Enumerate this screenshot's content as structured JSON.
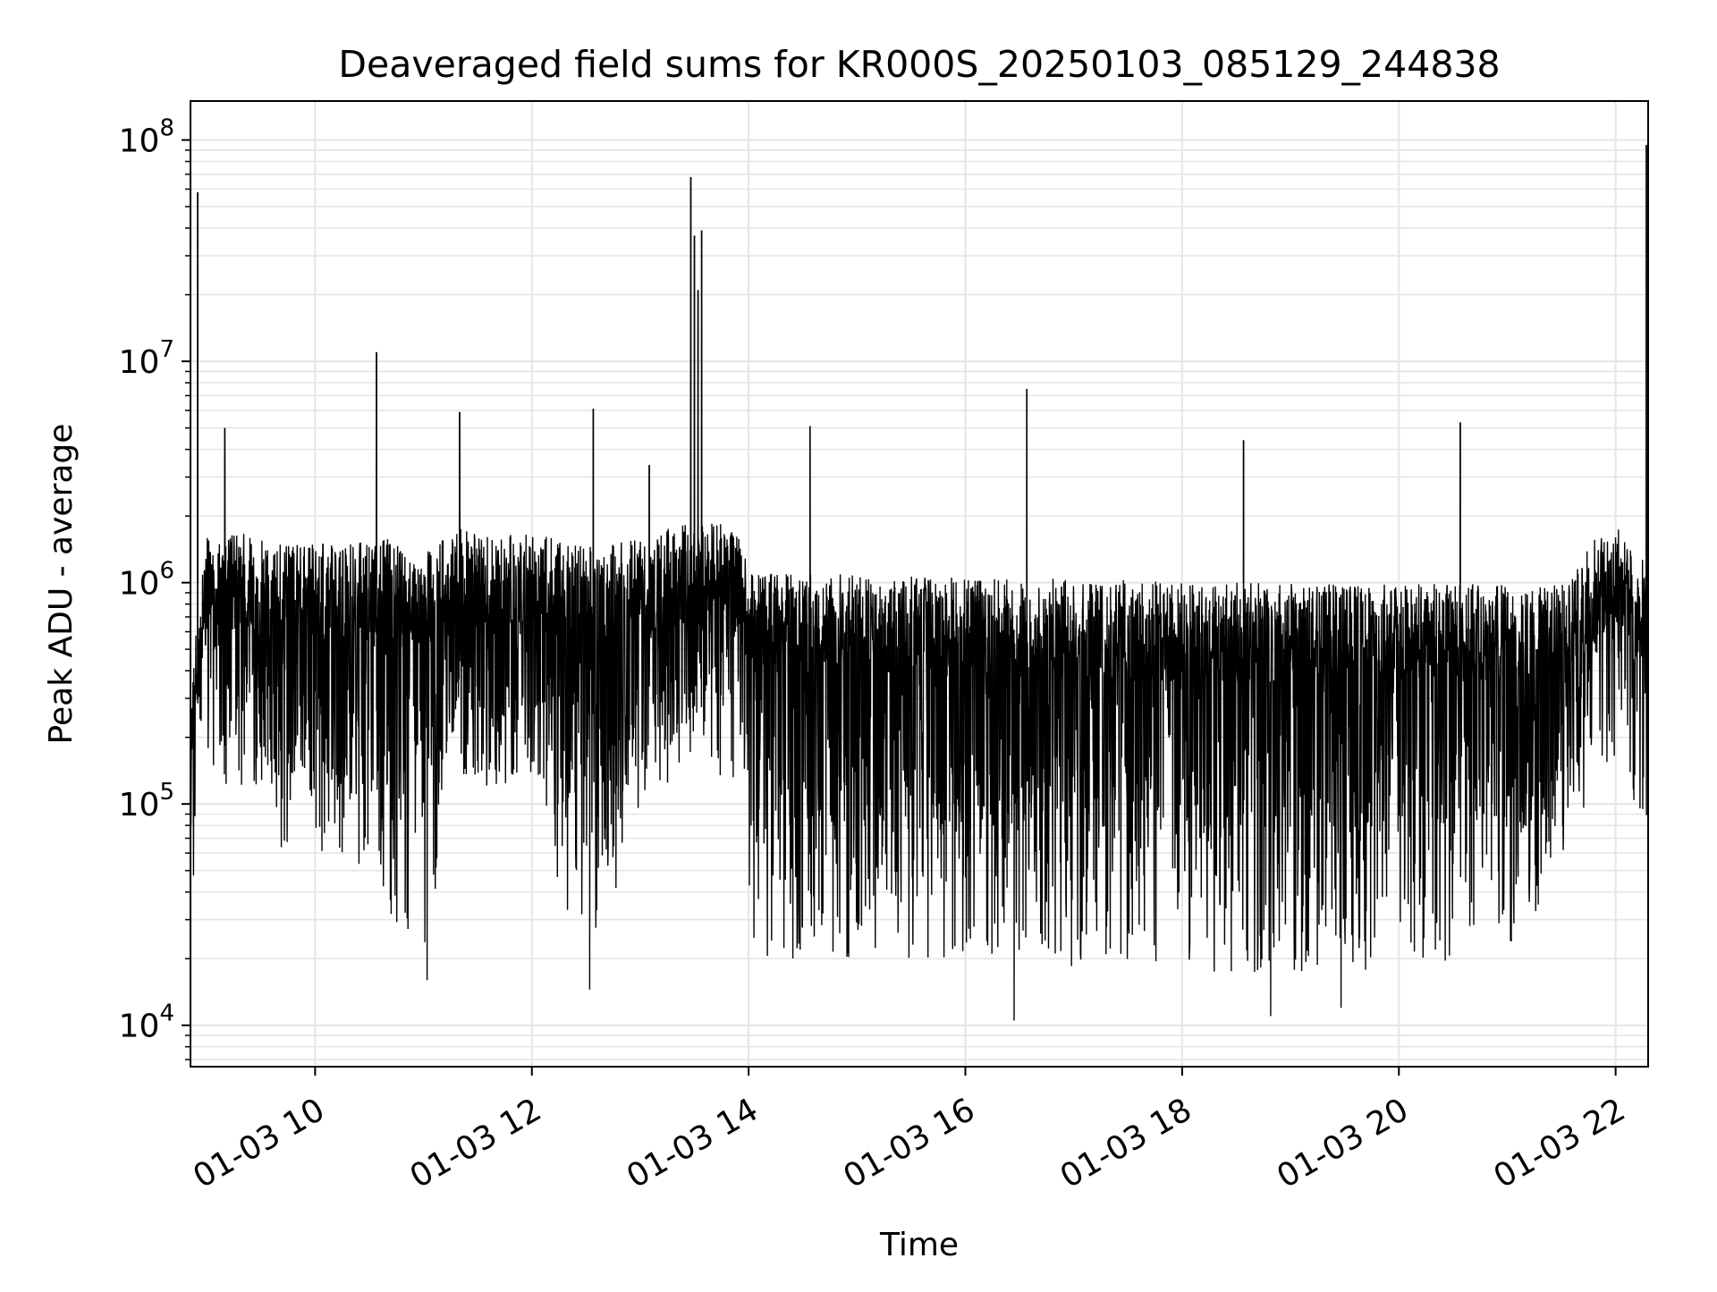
{
  "chart_data": {
    "type": "line",
    "title": "Deaveraged field sums for KR000S_20250103_085129_244838",
    "xlabel": "Time",
    "ylabel": "Peak ADU - average",
    "y_scale": "log",
    "ylim": [
      6500,
      150000000
    ],
    "xlim": [
      "2025-01-03 08:51",
      "2025-01-03 22:18"
    ],
    "grid": true,
    "x_ticks": [
      {
        "t": "2025-01-03 10:00",
        "label": "01-03 10"
      },
      {
        "t": "2025-01-03 12:00",
        "label": "01-03 12"
      },
      {
        "t": "2025-01-03 14:00",
        "label": "01-03 14"
      },
      {
        "t": "2025-01-03 16:00",
        "label": "01-03 16"
      },
      {
        "t": "2025-01-03 18:00",
        "label": "01-03 18"
      },
      {
        "t": "2025-01-03 20:00",
        "label": "01-03 20"
      },
      {
        "t": "2025-01-03 22:00",
        "label": "01-03 22"
      }
    ],
    "y_ticks": [
      {
        "value": 10000,
        "base": "10",
        "exp": "4"
      },
      {
        "value": 100000,
        "base": "10",
        "exp": "5"
      },
      {
        "value": 1000000,
        "base": "10",
        "exp": "6"
      },
      {
        "value": 10000000,
        "base": "10",
        "exp": "7"
      },
      {
        "value": 100000000,
        "base": "10",
        "exp": "8"
      }
    ],
    "line_color": "#000000",
    "grid_color": "#e5e5e5",
    "series": [
      {
        "values_note_free": true,
        "envelope": [
          {
            "t": "2025-01-03 08:51",
            "hi": 400000,
            "lo": 130000
          },
          {
            "t": "2025-01-03 09:00",
            "hi": 1600000,
            "lo": 700000
          },
          {
            "t": "2025-01-03 09:20",
            "hi": 1700000,
            "lo": 500000
          },
          {
            "t": "2025-01-03 09:40",
            "hi": 1500000,
            "lo": 40000
          },
          {
            "t": "2025-01-03 10:00",
            "hi": 1500000,
            "lo": 60000
          },
          {
            "t": "2025-01-03 10:20",
            "hi": 1500000,
            "lo": 60000
          },
          {
            "t": "2025-01-03 10:40",
            "hi": 1600000,
            "lo": 30000
          },
          {
            "t": "2025-01-03 11:00",
            "hi": 1400000,
            "lo": 20000
          },
          {
            "t": "2025-01-03 11:20",
            "hi": 1800000,
            "lo": 150000
          },
          {
            "t": "2025-01-03 11:40",
            "hi": 1600000,
            "lo": 100000
          },
          {
            "t": "2025-01-03 12:00",
            "hi": 1800000,
            "lo": 150000
          },
          {
            "t": "2025-01-03 12:20",
            "hi": 1500000,
            "lo": 25000
          },
          {
            "t": "2025-01-03 12:40",
            "hi": 1500000,
            "lo": 25000
          },
          {
            "t": "2025-01-03 13:00",
            "hi": 1600000,
            "lo": 100000
          },
          {
            "t": "2025-01-03 13:20",
            "hi": 1800000,
            "lo": 200000
          },
          {
            "t": "2025-01-03 13:40",
            "hi": 1900000,
            "lo": 300000
          },
          {
            "t": "2025-01-03 13:55",
            "hi": 1700000,
            "lo": 300000
          },
          {
            "t": "2025-01-03 14:00",
            "hi": 1100000,
            "lo": 20000
          },
          {
            "t": "2025-01-03 15:00",
            "hi": 1100000,
            "lo": 20000
          },
          {
            "t": "2025-01-03 16:00",
            "hi": 1050000,
            "lo": 20000
          },
          {
            "t": "2025-01-03 17:00",
            "hi": 1050000,
            "lo": 18000
          },
          {
            "t": "2025-01-03 18:00",
            "hi": 1000000,
            "lo": 16000
          },
          {
            "t": "2025-01-03 19:00",
            "hi": 1000000,
            "lo": 17000
          },
          {
            "t": "2025-01-03 20:00",
            "hi": 1000000,
            "lo": 18000
          },
          {
            "t": "2025-01-03 21:00",
            "hi": 1000000,
            "lo": 20000
          },
          {
            "t": "2025-01-03 21:35",
            "hi": 1000000,
            "lo": 30000
          },
          {
            "t": "2025-01-03 21:45",
            "hi": 1500000,
            "lo": 300000
          },
          {
            "t": "2025-01-03 22:00",
            "hi": 1800000,
            "lo": 900000
          },
          {
            "t": "2025-01-03 22:18",
            "hi": 1200000,
            "lo": 400000
          }
        ],
        "spikes": [
          {
            "t": "2025-01-03 08:55",
            "value": 58000000
          },
          {
            "t": "2025-01-03 09:10",
            "value": 5000000
          },
          {
            "t": "2025-01-03 10:34",
            "value": 11000000
          },
          {
            "t": "2025-01-03 11:20",
            "value": 5900000
          },
          {
            "t": "2025-01-03 12:34",
            "value": 6100000
          },
          {
            "t": "2025-01-03 13:05",
            "value": 3400000
          },
          {
            "t": "2025-01-03 13:28",
            "value": 68000000
          },
          {
            "t": "2025-01-03 13:30",
            "value": 37000000
          },
          {
            "t": "2025-01-03 13:32",
            "value": 21000000
          },
          {
            "t": "2025-01-03 13:34",
            "value": 39000000
          },
          {
            "t": "2025-01-03 14:34",
            "value": 5100000
          },
          {
            "t": "2025-01-03 16:34",
            "value": 7500000
          },
          {
            "t": "2025-01-03 18:34",
            "value": 4400000
          },
          {
            "t": "2025-01-03 20:34",
            "value": 5300000
          },
          {
            "t": "2025-01-03 22:17",
            "value": 95000000
          }
        ],
        "dips": [
          {
            "t": "2025-01-03 16:27",
            "value": 10500
          },
          {
            "t": "2025-01-03 18:49",
            "value": 11000
          },
          {
            "t": "2025-01-03 19:28",
            "value": 12000
          },
          {
            "t": "2025-01-03 11:02",
            "value": 16000
          },
          {
            "t": "2025-01-03 12:32",
            "value": 14500
          }
        ]
      }
    ]
  }
}
